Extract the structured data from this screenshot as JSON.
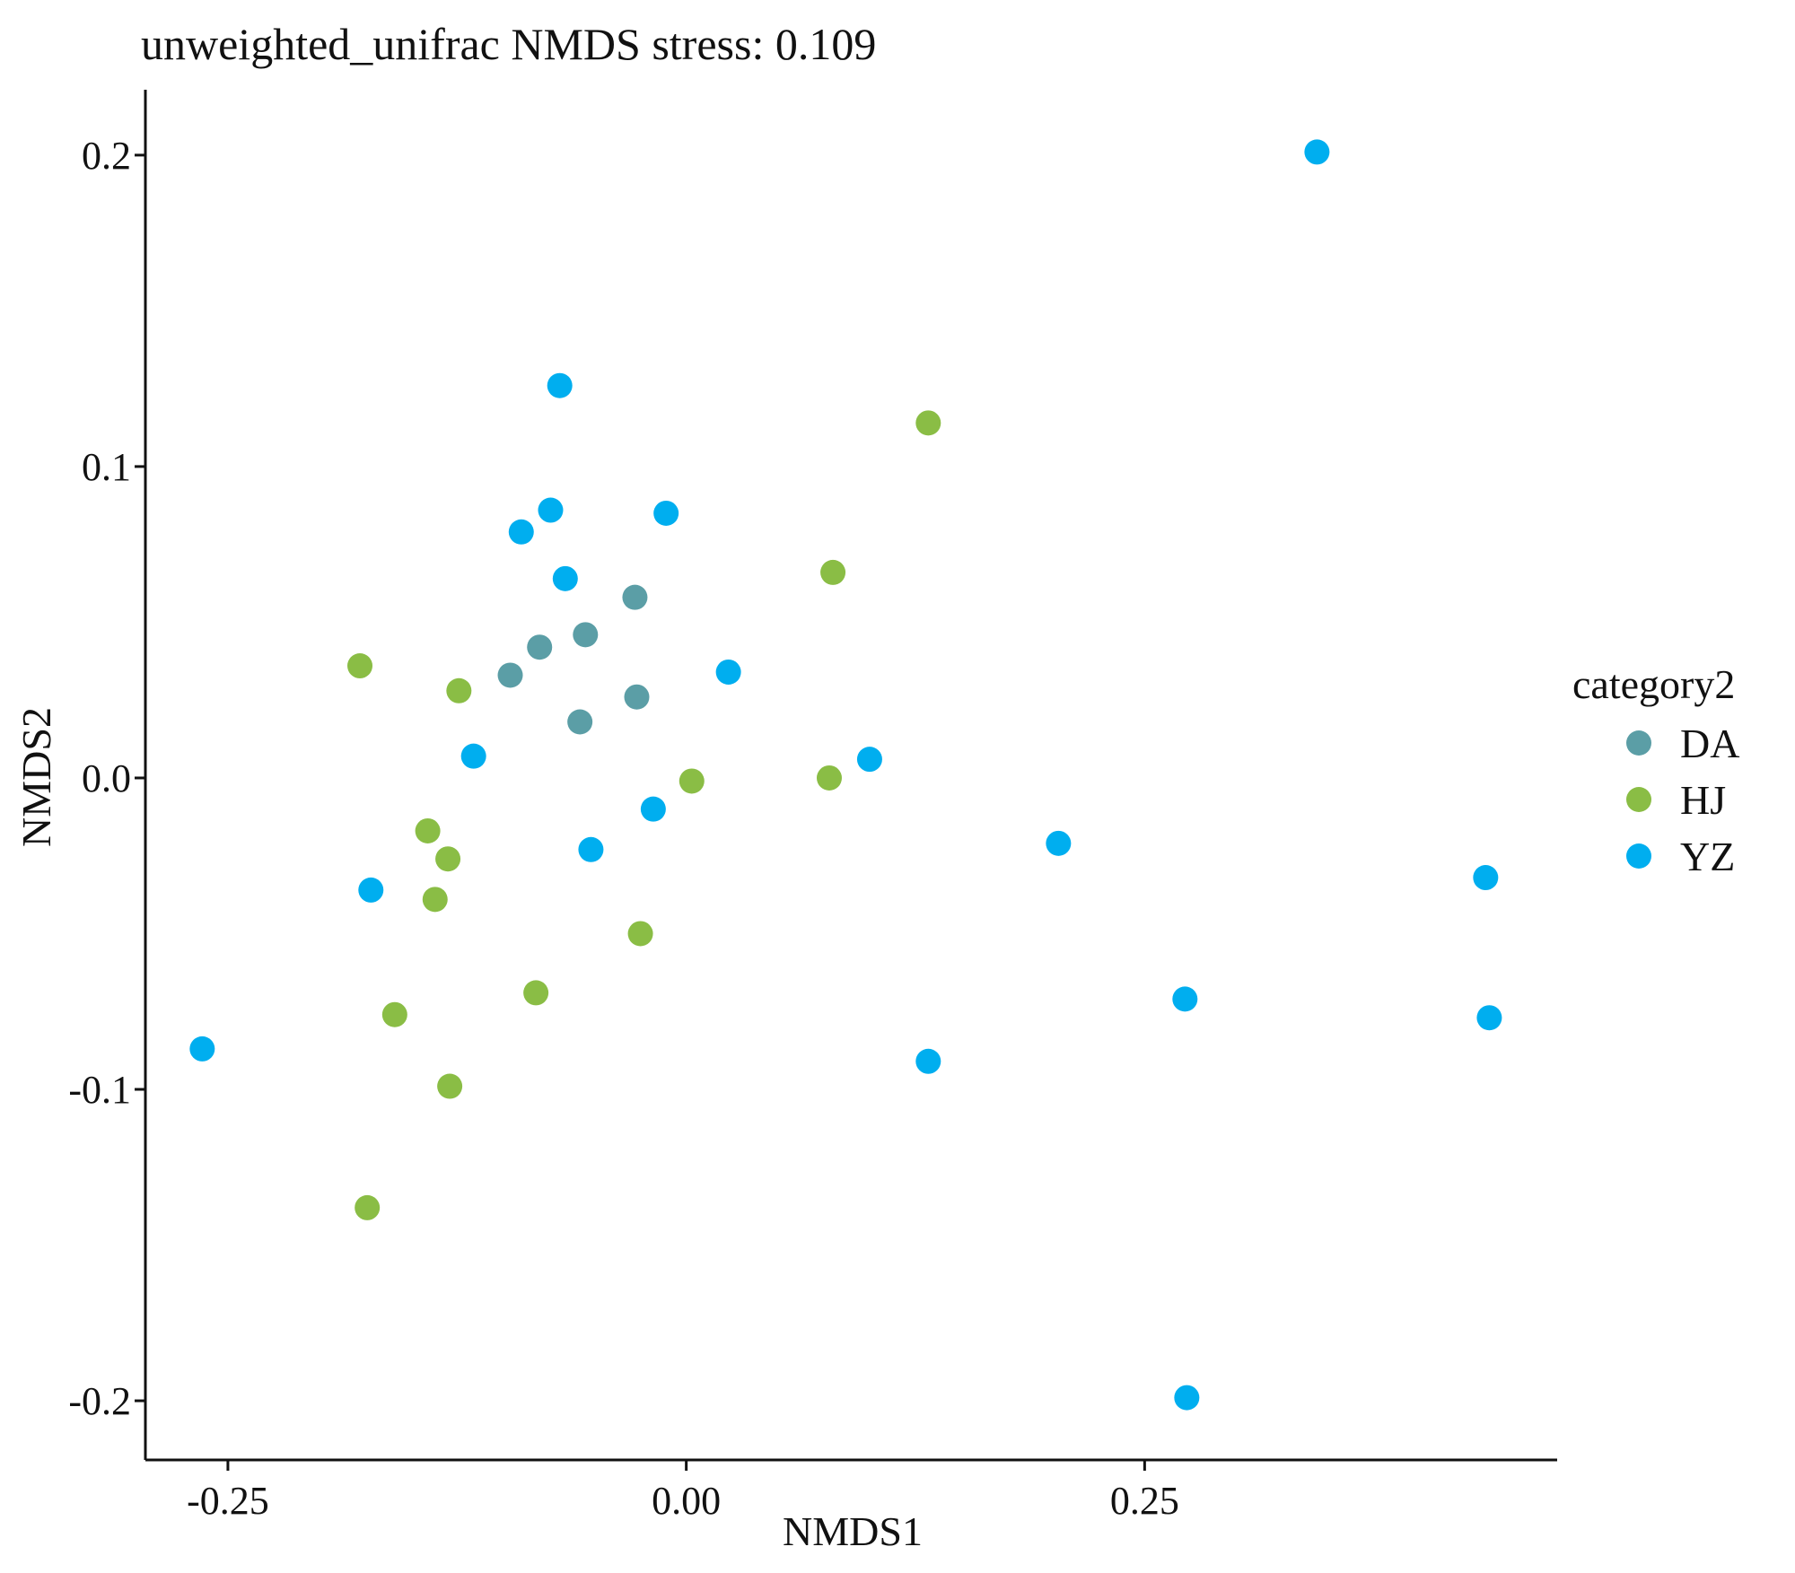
{
  "chart_data": {
    "type": "scatter",
    "title": "unweighted_unifrac NMDS stress: 0.109",
    "xlabel": "NMDS1",
    "ylabel": "NMDS2",
    "xlim": [
      -0.295,
      0.475
    ],
    "ylim": [
      -0.219,
      0.221
    ],
    "x_ticks": [
      -0.25,
      0.0,
      0.25
    ],
    "x_tick_labels": [
      "-0.25",
      "0.00",
      "0.25"
    ],
    "y_ticks": [
      -0.2,
      -0.1,
      0.0,
      0.1,
      0.2
    ],
    "y_tick_labels": [
      "-0.2",
      "-0.1",
      "0.0",
      "0.1",
      "0.2"
    ],
    "grid": false,
    "legend": {
      "title": "category2",
      "position": "right"
    },
    "series": [
      {
        "name": "DA",
        "color": "#5B9EA6",
        "points": [
          {
            "x": -0.096,
            "y": 0.033
          },
          {
            "x": -0.08,
            "y": 0.042
          },
          {
            "x": -0.055,
            "y": 0.046
          },
          {
            "x": -0.028,
            "y": 0.058
          },
          {
            "x": -0.027,
            "y": 0.026
          },
          {
            "x": -0.058,
            "y": 0.018
          }
        ]
      },
      {
        "name": "HJ",
        "color": "#8ABD45",
        "points": [
          {
            "x": 0.132,
            "y": 0.114
          },
          {
            "x": 0.08,
            "y": 0.066
          },
          {
            "x": -0.178,
            "y": 0.036
          },
          {
            "x": -0.124,
            "y": 0.028
          },
          {
            "x": 0.003,
            "y": -0.001
          },
          {
            "x": 0.078,
            "y": 0.0
          },
          {
            "x": -0.141,
            "y": -0.017
          },
          {
            "x": -0.13,
            "y": -0.026
          },
          {
            "x": -0.137,
            "y": -0.039
          },
          {
            "x": -0.025,
            "y": -0.05
          },
          {
            "x": -0.082,
            "y": -0.069
          },
          {
            "x": -0.159,
            "y": -0.076
          },
          {
            "x": -0.129,
            "y": -0.099
          },
          {
            "x": -0.174,
            "y": -0.138
          }
        ]
      },
      {
        "name": "YZ",
        "color": "#00AEEF",
        "points": [
          {
            "x": 0.344,
            "y": 0.201
          },
          {
            "x": -0.069,
            "y": 0.126
          },
          {
            "x": -0.074,
            "y": 0.086
          },
          {
            "x": -0.09,
            "y": 0.079
          },
          {
            "x": -0.011,
            "y": 0.085
          },
          {
            "x": -0.066,
            "y": 0.064
          },
          {
            "x": 0.023,
            "y": 0.034
          },
          {
            "x": -0.116,
            "y": 0.007
          },
          {
            "x": 0.1,
            "y": 0.006
          },
          {
            "x": -0.018,
            "y": -0.01
          },
          {
            "x": -0.052,
            "y": -0.023
          },
          {
            "x": 0.203,
            "y": -0.021
          },
          {
            "x": -0.172,
            "y": -0.036
          },
          {
            "x": 0.436,
            "y": -0.032
          },
          {
            "x": 0.272,
            "y": -0.071
          },
          {
            "x": 0.438,
            "y": -0.077
          },
          {
            "x": 0.132,
            "y": -0.091
          },
          {
            "x": -0.264,
            "y": -0.087
          },
          {
            "x": 0.273,
            "y": -0.199
          }
        ]
      }
    ]
  }
}
